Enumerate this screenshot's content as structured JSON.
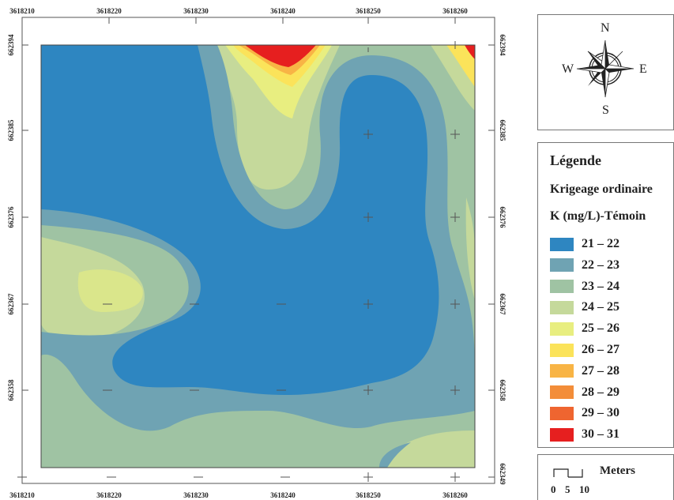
{
  "map": {
    "x_ticks_top": [
      "3618210",
      "3618220",
      "3618230",
      "3618240",
      "3618250",
      "3618260"
    ],
    "x_ticks_bottom": [
      "3618210",
      "3618220",
      "3618230",
      "3618240",
      "3618250",
      "3618260"
    ],
    "y_ticks_left": [
      "662394",
      "662385",
      "662376",
      "662367",
      "662358"
    ],
    "y_ticks_right": [
      "662394",
      "662385",
      "662376",
      "662367",
      "662358",
      "662349"
    ]
  },
  "compass": {
    "north": "N",
    "south": "S",
    "east": "E",
    "west": "W",
    "icon": "compass-rose-icon"
  },
  "legend": {
    "title": "Légende",
    "method": "Krigeage ordinaire",
    "variable": "K (mg/L)-Témoin",
    "classes": [
      {
        "label": "21 – 22",
        "color": "#2e86c1"
      },
      {
        "label": "22 – 23",
        "color": "#6fa3b3"
      },
      {
        "label": "23 – 24",
        "color": "#9fc3a3"
      },
      {
        "label": "24 – 25",
        "color": "#c5d99b"
      },
      {
        "label": "25 – 26",
        "color": "#e8ee80"
      },
      {
        "label": "26 – 27",
        "color": "#fbe35a"
      },
      {
        "label": "27 – 28",
        "color": "#f8b445"
      },
      {
        "label": "28 – 29",
        "color": "#f38d39"
      },
      {
        "label": "29 – 30",
        "color": "#ef6530"
      },
      {
        "label": "30 – 31",
        "color": "#e61f1f"
      }
    ]
  },
  "scale": {
    "unit": "Meters",
    "ticks": [
      "0",
      "5",
      "10"
    ]
  }
}
